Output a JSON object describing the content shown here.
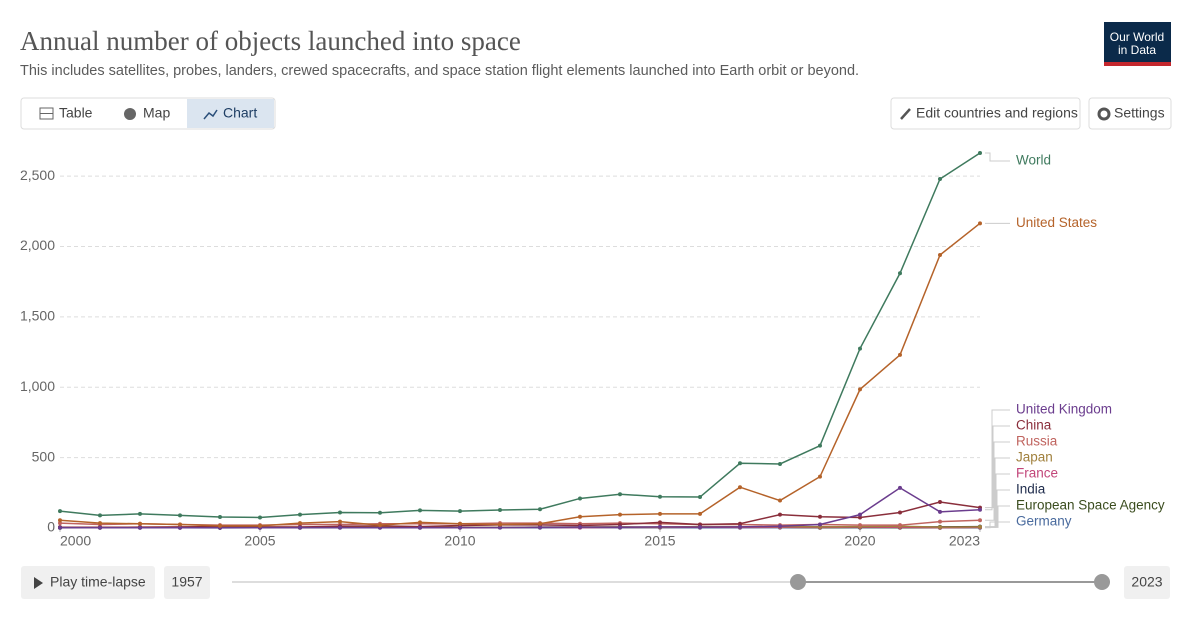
{
  "ui": {
    "logo": [
      "Our World",
      "in Data"
    ],
    "tabs": [
      "Table",
      "Map",
      "Chart"
    ],
    "edit": "Edit countries and regions",
    "settings": "Settings",
    "play": "Play time-lapse",
    "start": "1957",
    "end": "2023"
  },
  "chart_data": {
    "type": "line",
    "title": "Annual number of objects launched into space",
    "subtitle": "This includes satellites, probes, landers, crewed spacecrafts, and space station flight elements launched into Earth orbit or beyond.",
    "x": [
      2000,
      2001,
      2002,
      2003,
      2004,
      2005,
      2006,
      2007,
      2008,
      2009,
      2010,
      2011,
      2012,
      2013,
      2014,
      2015,
      2016,
      2017,
      2018,
      2019,
      2020,
      2021,
      2022,
      2023
    ],
    "xlim": [
      2000,
      2023
    ],
    "xticks": [
      2000,
      2005,
      2010,
      2015,
      2020,
      2023
    ],
    "ylim": [
      0,
      2750
    ],
    "yticks": [
      0,
      500,
      {
        "value": 1000,
        "label": "1,000"
      },
      {
        "value": 1500,
        "label": "1,500"
      },
      {
        "value": 2000,
        "label": "2,000"
      },
      {
        "value": 2500,
        "label": "2,500"
      }
    ],
    "grid": true,
    "series": [
      {
        "name": "World",
        "color": "#3f7a5e",
        "values": [
          120,
          90,
          100,
          90,
          78,
          75,
          95,
          110,
          108,
          125,
          120,
          128,
          133,
          210,
          240,
          222,
          220,
          460,
          455,
          585,
          1275,
          1810,
          2480,
          2665
        ]
      },
      {
        "name": "United States",
        "color": "#b5632a",
        "values": [
          55,
          35,
          30,
          25,
          15,
          15,
          35,
          45,
          20,
          40,
          30,
          25,
          30,
          80,
          95,
          100,
          100,
          290,
          195,
          365,
          985,
          1230,
          1940,
          2165
        ]
      },
      {
        "name": "United Kingdom",
        "color": "#6b3d8e",
        "values": [
          3,
          2,
          2,
          2,
          2,
          2,
          3,
          3,
          2,
          3,
          3,
          3,
          4,
          6,
          5,
          8,
          6,
          8,
          12,
          25,
          95,
          285,
          115,
          130
        ]
      },
      {
        "name": "China",
        "color": "#8a2e3b",
        "values": [
          5,
          5,
          6,
          8,
          10,
          8,
          7,
          12,
          15,
          10,
          18,
          22,
          22,
          18,
          25,
          40,
          25,
          30,
          95,
          80,
          75,
          110,
          185,
          145
        ]
      },
      {
        "name": "Russia",
        "color": "#c0645f",
        "values": [
          35,
          25,
          30,
          25,
          20,
          20,
          25,
          25,
          30,
          30,
          30,
          35,
          35,
          30,
          35,
          30,
          25,
          25,
          20,
          25,
          20,
          20,
          45,
          55
        ]
      },
      {
        "name": "Japan",
        "color": "#a1813e",
        "values": [
          5,
          3,
          5,
          4,
          3,
          5,
          6,
          5,
          5,
          6,
          4,
          5,
          6,
          7,
          8,
          6,
          10,
          8,
          10,
          8,
          10,
          12,
          6,
          8
        ]
      },
      {
        "name": "France",
        "color": "#c2467a",
        "values": [
          5,
          4,
          4,
          3,
          4,
          3,
          4,
          5,
          4,
          4,
          3,
          4,
          5,
          3,
          4,
          4,
          5,
          4,
          5,
          4,
          6,
          5,
          3,
          4
        ]
      },
      {
        "name": "India",
        "color": "#1f2c4c",
        "values": [
          2,
          3,
          3,
          3,
          2,
          3,
          2,
          4,
          5,
          3,
          5,
          4,
          6,
          5,
          7,
          6,
          8,
          6,
          8,
          8,
          5,
          6,
          8,
          10
        ]
      },
      {
        "name": "European Space Agency",
        "color": "#3b4d1f",
        "values": [
          4,
          3,
          4,
          3,
          3,
          4,
          5,
          4,
          5,
          6,
          5,
          4,
          5,
          6,
          5,
          4,
          6,
          5,
          5,
          3,
          4,
          3,
          2,
          4
        ]
      },
      {
        "name": "Germany",
        "color": "#4a6b9e",
        "values": [
          2,
          2,
          2,
          2,
          1,
          2,
          3,
          2,
          3,
          2,
          2,
          3,
          2,
          3,
          2,
          3,
          2,
          2,
          3,
          2,
          3,
          3,
          2,
          2
        ]
      }
    ]
  }
}
